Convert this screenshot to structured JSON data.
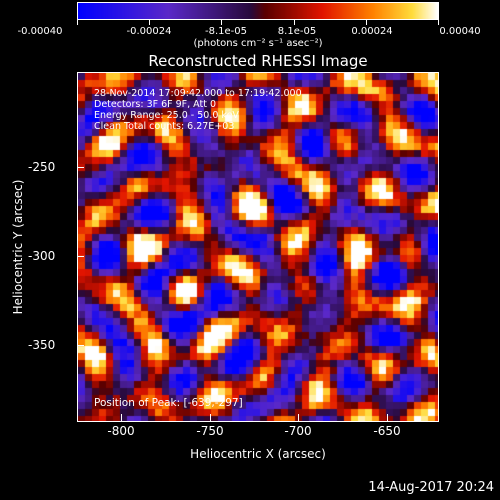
{
  "colorbar": {
    "ticks": [
      "-0.00040",
      "-0.00024",
      "-8.1e-05",
      "8.1e-05",
      "0.00024",
      "0.00040"
    ],
    "units": "(photons cm⁻² s⁻¹ asec⁻²)"
  },
  "title": "Reconstructed RHESSI Image",
  "annotations": {
    "time_range": "28-Nov-2014 17:09:42.000 to 17:19:42.000",
    "detectors": "Detectors: 3F 6F 9F, Att 0",
    "energy": "Energy Range: 25.0 - 50.0 keV",
    "clean": "Clean     Total counts: 6.27E+03",
    "peak": "Position of Peak: [-639,-297]"
  },
  "axes": {
    "xlabel": "Heliocentric X (arcsec)",
    "ylabel": "Heliocentric Y (arcsec)",
    "xticks": [
      "-800",
      "-750",
      "-700",
      "-650"
    ],
    "yticks": [
      "-250",
      "-300",
      "-350"
    ]
  },
  "timestamp": "14-Aug-2017 20:24"
}
